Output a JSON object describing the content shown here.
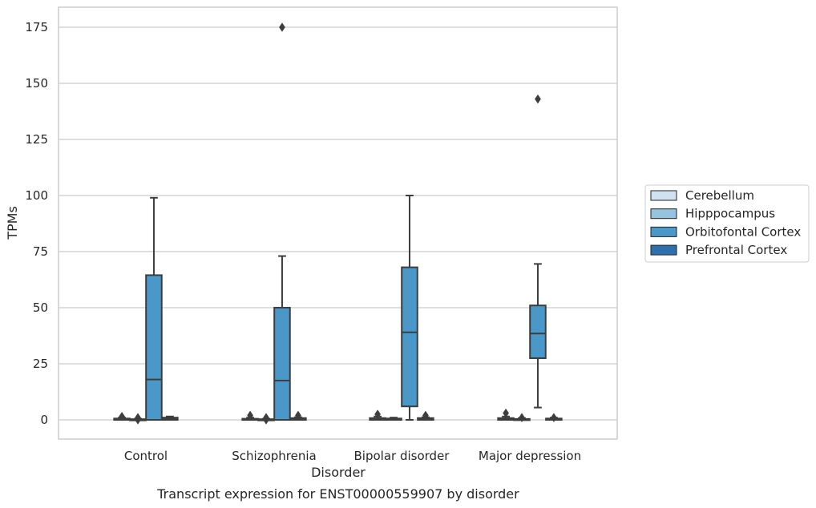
{
  "chart_data": {
    "type": "box",
    "caption": "Transcript expression for ENST00000559907 by disorder",
    "xlabel": "Disorder",
    "ylabel": "TPMs",
    "ylim": [
      -8,
      184
    ],
    "yticks": [
      0,
      25,
      50,
      75,
      100,
      125,
      150,
      175
    ],
    "grid": "horizontal",
    "legend_position": "right",
    "categories": [
      "Control",
      "Schizophrenia",
      "Bipolar disorder",
      "Major depression"
    ],
    "series": [
      {
        "name": "Cerebellum",
        "color": "#d0e1f2",
        "boxes": [
          {
            "min": 0,
            "q1": 0,
            "median": 0.2,
            "q3": 0.6,
            "max": 1,
            "outliers": [
              1.5
            ]
          },
          {
            "min": 0,
            "q1": 0,
            "median": 0.2,
            "q3": 0.5,
            "max": 1,
            "outliers": [
              2
            ]
          },
          {
            "min": 0,
            "q1": 0,
            "median": 0.3,
            "q3": 0.8,
            "max": 1.5,
            "outliers": [
              2.5
            ]
          },
          {
            "min": 0,
            "q1": 0,
            "median": 0.3,
            "q3": 0.8,
            "max": 1.5,
            "outliers": [
              3
            ]
          }
        ]
      },
      {
        "name": "Hipppocampus",
        "color": "#94c4df",
        "boxes": [
          {
            "min": 0,
            "q1": 0,
            "median": 0.1,
            "q3": 0.3,
            "max": 0.5,
            "outliers": [
              1,
              0
            ]
          },
          {
            "min": 0,
            "q1": 0,
            "median": 0.1,
            "q3": 0.3,
            "max": 0.5,
            "outliers": [
              1,
              0
            ]
          },
          {
            "min": 0,
            "q1": 0,
            "median": 0.2,
            "q3": 0.6,
            "max": 1,
            "outliers": []
          },
          {
            "min": 0,
            "q1": 0,
            "median": 0.1,
            "q3": 0.4,
            "max": 0.8,
            "outliers": [
              1
            ]
          }
        ]
      },
      {
        "name": "Orbitofontal Cortex",
        "color": "#4a98c9",
        "boxes": [
          {
            "min": 0,
            "q1": 0,
            "median": 18,
            "q3": 64.5,
            "max": 99,
            "outliers": []
          },
          {
            "min": 0,
            "q1": 0,
            "median": 17.5,
            "q3": 50,
            "max": 73,
            "outliers": [
              175
            ]
          },
          {
            "min": 0,
            "q1": 6,
            "median": 39,
            "q3": 68,
            "max": 100,
            "outliers": []
          },
          {
            "min": 5.5,
            "q1": 27.5,
            "median": 38.5,
            "q3": 51,
            "max": 69.5,
            "outliers": [
              143
            ]
          }
        ]
      },
      {
        "name": "Prefrontal Cortex",
        "color": "#2e6fae",
        "boxes": [
          {
            "min": 0,
            "q1": 0,
            "median": 0.4,
            "q3": 1,
            "max": 1.5,
            "outliers": []
          },
          {
            "min": 0,
            "q1": 0,
            "median": 0.3,
            "q3": 0.8,
            "max": 1.2,
            "outliers": [
              2
            ]
          },
          {
            "min": 0,
            "q1": 0,
            "median": 0.3,
            "q3": 0.8,
            "max": 1.2,
            "outliers": [
              2
            ]
          },
          {
            "min": 0,
            "q1": 0,
            "median": 0.2,
            "q3": 0.6,
            "max": 1,
            "outliers": [
              1
            ]
          }
        ]
      }
    ]
  }
}
